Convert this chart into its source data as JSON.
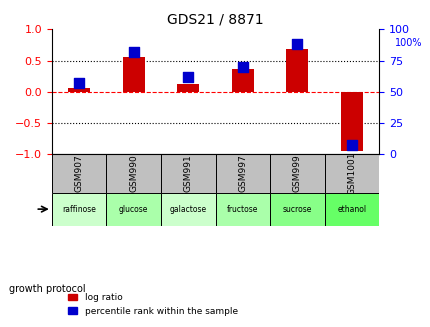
{
  "title": "GDS21 / 8871",
  "samples": [
    "GSM907",
    "GSM990",
    "GSM991",
    "GSM997",
    "GSM999",
    "GSM1001"
  ],
  "protocols": [
    "raffinose",
    "glucose",
    "galactose",
    "fructose",
    "sucrose",
    "ethanol"
  ],
  "log_ratio": [
    0.05,
    0.55,
    0.12,
    0.37,
    0.68,
    -0.95
  ],
  "percentile_rank": [
    57,
    82,
    62,
    70,
    88,
    7
  ],
  "bar_color": "#cc0000",
  "dot_color": "#0000cc",
  "ylim_left": [
    -1,
    1
  ],
  "ylim_right": [
    0,
    100
  ],
  "yticks_left": [
    -1,
    -0.5,
    0,
    0.5,
    1
  ],
  "yticks_right": [
    0,
    25,
    50,
    75,
    100
  ],
  "hlines": [
    -0.5,
    0,
    0.5
  ],
  "hline_styles": [
    "dotted",
    "dashed",
    "dotted"
  ],
  "hline_colors": [
    "black",
    "red",
    "black"
  ],
  "sample_bg_color": "#c0c0c0",
  "protocol_colors": [
    "#ccffcc",
    "#aaffaa",
    "#ccffcc",
    "#aaffaa",
    "#88ff88",
    "#66ff66"
  ],
  "growth_protocol_label": "growth protocol",
  "legend_log_ratio": "log ratio",
  "legend_percentile": "percentile rank within the sample",
  "bar_width": 0.4,
  "dot_size": 50
}
